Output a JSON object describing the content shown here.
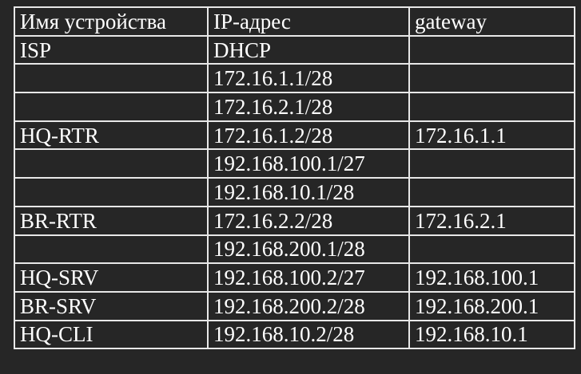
{
  "table": {
    "headers": [
      "Имя устройства",
      "IP-адрес",
      "gateway"
    ],
    "rows": [
      [
        "ISP",
        "DHCP",
        ""
      ],
      [
        "",
        "172.16.1.1/28",
        ""
      ],
      [
        "",
        "172.16.2.1/28",
        ""
      ],
      [
        "HQ-RTR",
        "172.16.1.2/28",
        "172.16.1.1"
      ],
      [
        "",
        "192.168.100.1/27",
        ""
      ],
      [
        "",
        "192.168.10.1/28",
        ""
      ],
      [
        "BR-RTR",
        "172.16.2.2/28",
        "172.16.2.1"
      ],
      [
        "",
        "192.168.200.1/28",
        ""
      ],
      [
        "HQ-SRV",
        "192.168.100.2/27",
        "192.168.100.1"
      ],
      [
        "BR-SRV",
        "192.168.200.2/28",
        "192.168.200.1"
      ],
      [
        "HQ-CLI",
        "192.168.10.2/28",
        "192.168.10.1"
      ]
    ]
  }
}
